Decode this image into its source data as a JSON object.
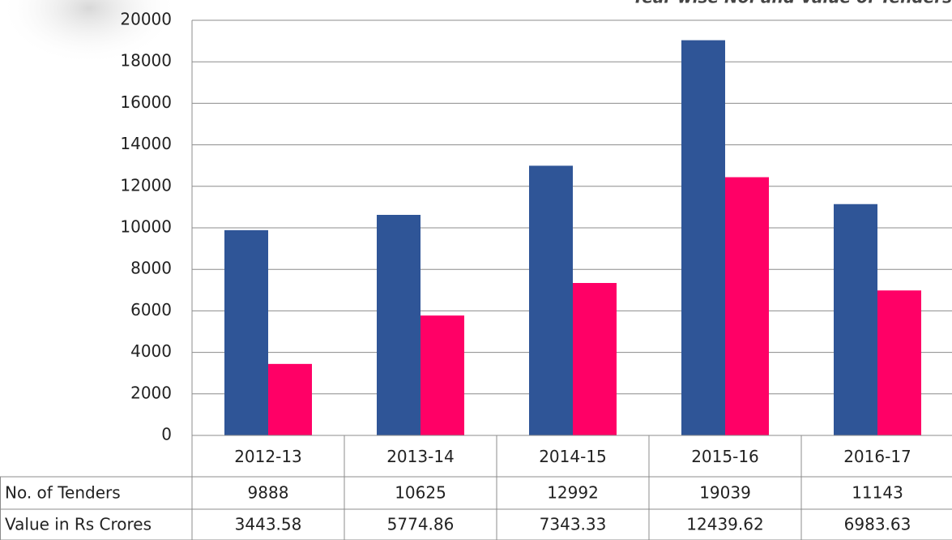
{
  "chart_data": {
    "type": "bar",
    "title": "Year wise No. and Value of Tenders",
    "categories": [
      "2012-13",
      "2013-14",
      "2014-15",
      "2015-16",
      "2016-17"
    ],
    "series": [
      {
        "name": "No. of Tenders",
        "color": "#2f5597",
        "values": [
          9888,
          10625,
          12992,
          19039,
          11143
        ]
      },
      {
        "name": "Value in Rs Crores",
        "color": "#ff0066",
        "values": [
          3443.58,
          5774.86,
          7343.33,
          12439.62,
          6983.63
        ]
      }
    ],
    "ylim": [
      0,
      20000
    ],
    "yticks": [
      0,
      2000,
      4000,
      6000,
      8000,
      10000,
      12000,
      14000,
      16000,
      18000,
      20000
    ],
    "grid": true,
    "data_table": true
  }
}
